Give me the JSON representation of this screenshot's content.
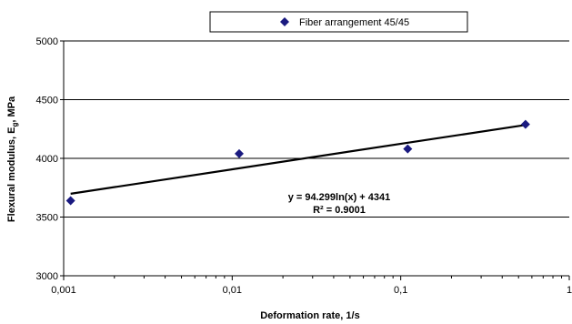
{
  "chart_data": {
    "type": "scatter",
    "x_scale": "log",
    "xlim": [
      0.001,
      1
    ],
    "ylim": [
      3000,
      5000
    ],
    "x_ticks": [
      "0,001",
      "0,01",
      "0,1",
      "1"
    ],
    "y_ticks": [
      "3000",
      "3500",
      "4000",
      "4500",
      "5000"
    ],
    "grid": "horizontal",
    "xlabel": "Deformation rate, 1/s",
    "ylabel_main": "Flexural modulus, E",
    "ylabel_sub": "g",
    "ylabel_tail": ", MPa",
    "legend_position": "top-center",
    "series": [
      {
        "name": "Fiber arrangement 45/45",
        "color": "#1a1a80",
        "marker": "diamond",
        "x": [
          0.0011,
          0.011,
          0.11,
          0.55
        ],
        "y": [
          3640,
          4040,
          4080,
          4290
        ]
      }
    ],
    "trendline": {
      "type": "log",
      "a": 94.299,
      "b": 4341,
      "equation": "y = 94.299ln(x) + 4341",
      "r_squared": "R² = 0.9001"
    }
  }
}
